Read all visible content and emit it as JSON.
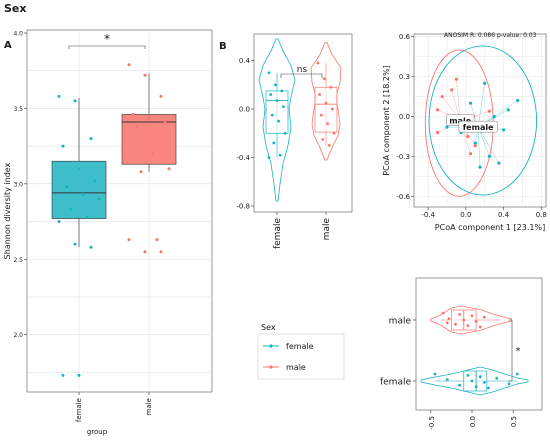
{
  "figure": {
    "title": "Sex",
    "panel_a_letter": "A",
    "panel_b_letter": "B"
  },
  "colors": {
    "female": "#17b3c1",
    "male": "#f8766d",
    "female_fill": "#3fbfcb",
    "male_fill": "#f9877f",
    "grid": "#dcdcdc",
    "panel_bg": "#ffffff",
    "axis": "#333333",
    "text": "#1a1a1a"
  },
  "legend": {
    "title": "Sex",
    "items": [
      "female",
      "male"
    ]
  },
  "chart_data": [
    {
      "id": "A",
      "type": "box",
      "title": "",
      "xlabel": "group",
      "ylabel": "Shannon diversity index",
      "categories": [
        "female",
        "male"
      ],
      "ylim": [
        1.62,
        4.02
      ],
      "yticks": [
        2.0,
        2.5,
        3.0,
        3.5,
        4.0
      ],
      "ytick_labels": [
        "2.0",
        "2.5",
        "3.0",
        "3.5",
        "4.0"
      ],
      "boxes": [
        {
          "group": "female",
          "q1": 2.77,
          "median": 2.94,
          "q3": 3.15,
          "lo": 2.58,
          "hi": 3.57
        },
        {
          "group": "male",
          "q1": 3.13,
          "median": 3.41,
          "q3": 3.46,
          "lo": 3.08,
          "hi": 3.73
        }
      ],
      "points": [
        {
          "group": "female",
          "y": [
            3.58,
            3.55,
            3.3,
            3.25,
            3.1,
            3.02,
            2.98,
            2.93,
            2.9,
            2.83,
            2.78,
            2.75,
            2.6,
            2.58,
            1.73,
            1.73
          ]
        },
        {
          "group": "male",
          "y": [
            3.79,
            3.72,
            3.58,
            3.46,
            3.43,
            3.41,
            3.38,
            3.2,
            3.1,
            3.08,
            2.63,
            2.63,
            2.55,
            2.55
          ]
        }
      ],
      "outliers": [
        {
          "group": "female",
          "y": 1.73
        },
        {
          "group": "male",
          "y": 2.63
        },
        {
          "group": "male",
          "y": 2.55
        }
      ],
      "significance": "*"
    },
    {
      "id": "B1",
      "type": "violin",
      "categories": [
        "female",
        "male"
      ],
      "ylim": [
        -0.85,
        0.62
      ],
      "yticks": [
        -0.8,
        -0.4,
        0.0,
        0.4
      ],
      "ytick_labels": [
        "-0.8",
        "-0.4",
        "0.0",
        "0.4"
      ],
      "boxes": [
        {
          "group": "female",
          "q1": -0.2,
          "median": 0.07,
          "q3": 0.15,
          "lo": -0.4,
          "hi": 0.3
        },
        {
          "group": "male",
          "q1": -0.19,
          "median": 0.04,
          "q3": 0.18,
          "lo": -0.3,
          "hi": 0.38
        }
      ],
      "points": [
        {
          "group": "female",
          "y": [
            0.3,
            0.2,
            0.15,
            0.12,
            0.07,
            0.02,
            -0.05,
            -0.1,
            -0.2,
            -0.28,
            -0.38,
            -0.4
          ]
        },
        {
          "group": "male",
          "y": [
            0.38,
            0.25,
            0.18,
            0.12,
            0.05,
            0.0,
            -0.05,
            -0.12,
            -0.2,
            -0.25,
            -0.3
          ]
        }
      ],
      "significance": "ns"
    },
    {
      "id": "B2",
      "type": "scatter",
      "xlabel": "PCoA component 1 [23.1%]",
      "ylabel": "PCoA component 2 [18.2%]",
      "annotation": "ANOSIM R: 0.086 p-value: 0.03",
      "xlim": [
        -0.55,
        0.85
      ],
      "ylim": [
        -0.68,
        0.62
      ],
      "xticks": [
        -0.4,
        0.0,
        0.4,
        0.8
      ],
      "xtick_labels": [
        "-0.4",
        "0.0",
        "0.4",
        "0.8"
      ],
      "yticks": [
        -0.6,
        -0.3,
        0.0,
        0.3,
        0.6
      ],
      "ytick_labels": [
        "-0.6",
        "-0.3",
        "0.0",
        "0.3",
        "0.6"
      ],
      "centroids": [
        {
          "group": "male",
          "label": "male",
          "x": -0.06,
          "y": -0.03
        },
        {
          "group": "female",
          "label": "female",
          "x": 0.13,
          "y": -0.08
        }
      ],
      "ellipses": [
        {
          "group": "male",
          "cx": -0.07,
          "cy": -0.05,
          "rx": 0.36,
          "ry": 0.55
        },
        {
          "group": "female",
          "cx": 0.18,
          "cy": -0.03,
          "rx": 0.57,
          "ry": 0.56
        }
      ],
      "series": [
        {
          "group": "female",
          "x": [
            0.55,
            0.45,
            0.3,
            0.4,
            0.2,
            0.1,
            0.25,
            -0.05,
            0.05,
            0.35,
            -0.2,
            0.15
          ],
          "y": [
            0.12,
            0.05,
            0.0,
            -0.1,
            0.25,
            -0.2,
            -0.3,
            -0.12,
            0.1,
            -0.35,
            -0.08,
            -0.38
          ]
        },
        {
          "group": "male",
          "x": [
            -0.3,
            -0.25,
            -0.15,
            -0.05,
            0.02,
            0.1,
            -0.1,
            0.08,
            -0.3,
            0.05,
            0.25
          ],
          "y": [
            0.05,
            0.15,
            0.2,
            -0.1,
            -0.15,
            -0.22,
            0.28,
            0.0,
            -0.12,
            -0.28,
            0.04
          ]
        }
      ]
    },
    {
      "id": "B3",
      "type": "violin",
      "orientation": "horizontal",
      "categories": [
        "male",
        "female"
      ],
      "xlim": [
        -0.68,
        0.85
      ],
      "xticks": [
        -0.5,
        0.0,
        0.5
      ],
      "xtick_labels": [
        "-0.5",
        "0.0",
        "0.5"
      ],
      "boxes": [
        {
          "group": "male",
          "q1": -0.25,
          "median": -0.1,
          "q3": 0.05,
          "lo": -0.38,
          "hi": 0.35
        },
        {
          "group": "female",
          "q1": -0.1,
          "median": 0.05,
          "q3": 0.18,
          "lo": -0.45,
          "hi": 0.55
        }
      ],
      "points": [
        {
          "group": "male",
          "x": [
            -0.35,
            -0.28,
            -0.2,
            -0.15,
            -0.1,
            -0.05,
            0.0,
            0.05,
            0.1,
            0.15,
            -0.3
          ]
        },
        {
          "group": "female",
          "x": [
            -0.45,
            -0.3,
            -0.15,
            -0.05,
            0.0,
            0.05,
            0.1,
            0.15,
            0.2,
            0.3,
            0.45,
            0.55
          ]
        }
      ],
      "significance": "*"
    }
  ]
}
